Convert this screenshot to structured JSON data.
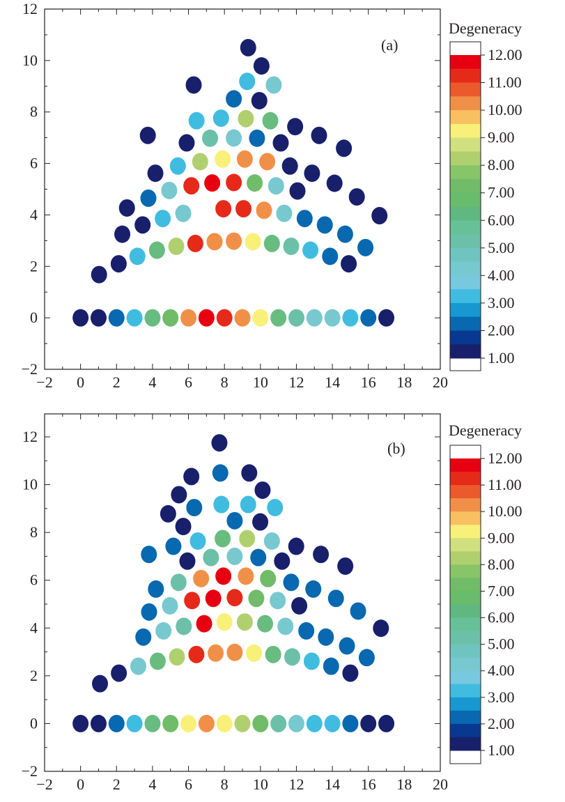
{
  "colorbar": {
    "title": "Degeneracy",
    "tick_labels": [
      "12.00",
      "11.00",
      "10.00",
      "9.00",
      "8.00",
      "7.00",
      "6.00",
      "5.00",
      "4.00",
      "3.00",
      "2.00",
      "1.00"
    ],
    "tick_values": [
      12,
      11,
      10,
      9,
      8,
      7,
      6,
      5,
      4,
      3,
      2,
      1
    ],
    "range": [
      1,
      12
    ],
    "band_colors_top_to_bottom": [
      "#e60012",
      "#e62a1a",
      "#ea5a2c",
      "#f09048",
      "#f8c060",
      "#f8f078",
      "#d0e080",
      "#b0d070",
      "#88c468",
      "#70bc68",
      "#68bc6c",
      "#60b880",
      "#68c098",
      "#6cc0a8",
      "#70c4c0",
      "#78c8d0",
      "#78c8e0",
      "#40bce0",
      "#1898d0",
      "#0868b0",
      "#083890",
      "#18206c"
    ]
  },
  "value_colors": {
    "1": "#18206c",
    "2": "#0868b0",
    "3": "#40bce0",
    "4": "#78c8d0",
    "5": "#6cc0a8",
    "6": "#68bc80",
    "7": "#70bc68",
    "8": "#b0d070",
    "9": "#f8f078",
    "10": "#f09048",
    "11": "#e62a1a",
    "12": "#e60012"
  },
  "chart_data": [
    {
      "type": "scatter",
      "panel_label": "(a)",
      "xlabel": "",
      "ylabel": "",
      "xlim": [
        -2,
        20
      ],
      "ylim": [
        -2,
        12
      ],
      "xticks": [
        -2,
        0,
        2,
        4,
        6,
        8,
        10,
        12,
        14,
        16,
        18,
        20
      ],
      "xtick_labels": [
        "−2",
        "0",
        "2",
        "4",
        "6",
        "8",
        "10",
        "12",
        "14",
        "16",
        "18",
        "20"
      ],
      "yticks": [
        -2,
        0,
        2,
        4,
        6,
        8,
        10,
        12
      ],
      "ytick_labels": [
        "−2",
        "0",
        "2",
        "4",
        "6",
        "8",
        "10",
        "12"
      ],
      "color_by": "Degeneracy",
      "points": [
        [
          9.32,
          10.5,
          1
        ],
        [
          10.06,
          9.79,
          1
        ],
        [
          9.26,
          9.19,
          3
        ],
        [
          10.74,
          9.05,
          4
        ],
        [
          6.29,
          9.05,
          1
        ],
        [
          8.52,
          8.51,
          2
        ],
        [
          9.94,
          8.44,
          1
        ],
        [
          6.45,
          7.66,
          3
        ],
        [
          7.81,
          7.76,
          3
        ],
        [
          9.19,
          7.74,
          8
        ],
        [
          10.55,
          7.66,
          6
        ],
        [
          11.93,
          7.43,
          1
        ],
        [
          13.26,
          7.09,
          1
        ],
        [
          14.64,
          6.59,
          1
        ],
        [
          3.74,
          7.09,
          1
        ],
        [
          5.9,
          6.8,
          1
        ],
        [
          7.2,
          6.98,
          5
        ],
        [
          8.52,
          6.99,
          4
        ],
        [
          9.81,
          6.98,
          2
        ],
        [
          11.13,
          6.8,
          1
        ],
        [
          5.41,
          5.9,
          3
        ],
        [
          6.65,
          6.07,
          8
        ],
        [
          7.9,
          6.17,
          9
        ],
        [
          9.13,
          6.17,
          10
        ],
        [
          10.38,
          6.07,
          10
        ],
        [
          11.64,
          5.9,
          1
        ],
        [
          12.87,
          5.62,
          1
        ],
        [
          14.12,
          5.23,
          1
        ],
        [
          15.36,
          4.7,
          1
        ],
        [
          16.62,
          3.97,
          1
        ],
        [
          4.16,
          5.62,
          1
        ],
        [
          4.93,
          4.95,
          4
        ],
        [
          6.16,
          5.13,
          11
        ],
        [
          7.32,
          5.24,
          12
        ],
        [
          8.52,
          5.26,
          11
        ],
        [
          9.68,
          5.24,
          7
        ],
        [
          10.87,
          5.13,
          4
        ],
        [
          12.06,
          4.93,
          1
        ],
        [
          3.77,
          4.65,
          2
        ],
        [
          2.58,
          4.27,
          1
        ],
        [
          4.57,
          3.86,
          3
        ],
        [
          5.71,
          4.06,
          4
        ],
        [
          7.94,
          4.24,
          11
        ],
        [
          9.06,
          4.24,
          11
        ],
        [
          10.2,
          4.18,
          10
        ],
        [
          11.32,
          4.06,
          4
        ],
        [
          12.46,
          3.86,
          2
        ],
        [
          13.58,
          3.61,
          2
        ],
        [
          14.71,
          3.25,
          2
        ],
        [
          15.84,
          2.73,
          2
        ],
        [
          3.45,
          3.61,
          1
        ],
        [
          2.32,
          3.25,
          1
        ],
        [
          1.03,
          1.68,
          1
        ],
        [
          2.12,
          2.1,
          1
        ],
        [
          3.16,
          2.39,
          3
        ],
        [
          4.25,
          2.63,
          6
        ],
        [
          5.32,
          2.78,
          8
        ],
        [
          6.38,
          2.89,
          11
        ],
        [
          7.45,
          2.96,
          10
        ],
        [
          8.52,
          2.98,
          10
        ],
        [
          9.58,
          2.96,
          9
        ],
        [
          10.64,
          2.89,
          6
        ],
        [
          11.71,
          2.78,
          5
        ],
        [
          12.78,
          2.63,
          3
        ],
        [
          13.87,
          2.39,
          2
        ],
        [
          14.91,
          2.1,
          1
        ],
        [
          0,
          0,
          1
        ],
        [
          1,
          0,
          1
        ],
        [
          2,
          0,
          2
        ],
        [
          3,
          0,
          3
        ],
        [
          4,
          0,
          6
        ],
        [
          5,
          0,
          7
        ],
        [
          6,
          0,
          10
        ],
        [
          7,
          0,
          12
        ],
        [
          8,
          0,
          11
        ],
        [
          9,
          0,
          10
        ],
        [
          10,
          0,
          9
        ],
        [
          11,
          0,
          6
        ],
        [
          12,
          0,
          5
        ],
        [
          13,
          0,
          4
        ],
        [
          14,
          0,
          4
        ],
        [
          15,
          0,
          3
        ],
        [
          16,
          0,
          2
        ],
        [
          17,
          0,
          1
        ]
      ]
    },
    {
      "type": "scatter",
      "panel_label": "(b)",
      "xlabel": "",
      "ylabel": "",
      "xlim": [
        -2,
        20
      ],
      "ylim": [
        -2,
        12.9
      ],
      "xticks": [
        -2,
        0,
        2,
        4,
        6,
        8,
        10,
        12,
        14,
        16,
        18,
        20
      ],
      "xtick_labels": [
        "−2",
        "0",
        "2",
        "4",
        "6",
        "8",
        "10",
        "12",
        "14",
        "16",
        "18",
        "20"
      ],
      "yticks": [
        -2,
        0,
        2,
        4,
        6,
        8,
        10,
        12
      ],
      "ytick_labels": [
        "−2",
        "0",
        "2",
        "4",
        "6",
        "8",
        "10",
        "12"
      ],
      "color_by": "Degeneracy",
      "points": [
        [
          7.72,
          11.75,
          1
        ],
        [
          7.77,
          10.49,
          2
        ],
        [
          9.38,
          10.49,
          1
        ],
        [
          6.16,
          10.34,
          1
        ],
        [
          10.12,
          9.77,
          1
        ],
        [
          5.47,
          9.58,
          1
        ],
        [
          6.32,
          9.04,
          2
        ],
        [
          7.83,
          9.17,
          3
        ],
        [
          9.32,
          9.17,
          3
        ],
        [
          10.81,
          9.04,
          3
        ],
        [
          4.87,
          8.78,
          1
        ],
        [
          5.71,
          8.25,
          1
        ],
        [
          8.57,
          8.49,
          2
        ],
        [
          9.99,
          8.44,
          1
        ],
        [
          6.52,
          7.64,
          3
        ],
        [
          7.9,
          7.74,
          6
        ],
        [
          9.26,
          7.74,
          8
        ],
        [
          10.64,
          7.64,
          4
        ],
        [
          11.99,
          7.42,
          1
        ],
        [
          13.36,
          7.08,
          1
        ],
        [
          14.72,
          6.59,
          1
        ],
        [
          3.8,
          7.08,
          2
        ],
        [
          5.16,
          7.42,
          2
        ],
        [
          5.94,
          6.8,
          1
        ],
        [
          7.25,
          6.95,
          5
        ],
        [
          8.57,
          7.0,
          4
        ],
        [
          9.88,
          6.95,
          2
        ],
        [
          11.2,
          6.8,
          1
        ],
        [
          5.45,
          5.91,
          5
        ],
        [
          6.7,
          6.07,
          10
        ],
        [
          7.94,
          6.17,
          12
        ],
        [
          9.19,
          6.17,
          10
        ],
        [
          10.42,
          6.07,
          7
        ],
        [
          11.71,
          5.91,
          2
        ],
        [
          12.94,
          5.63,
          2
        ],
        [
          14.2,
          5.24,
          2
        ],
        [
          15.43,
          4.71,
          2
        ],
        [
          16.7,
          3.99,
          1
        ],
        [
          4.19,
          5.63,
          2
        ],
        [
          4.97,
          4.93,
          4
        ],
        [
          6.2,
          5.15,
          11
        ],
        [
          7.38,
          5.24,
          12
        ],
        [
          8.57,
          5.27,
          11
        ],
        [
          9.77,
          5.24,
          7
        ],
        [
          10.96,
          5.15,
          4
        ],
        [
          12.16,
          4.93,
          1
        ],
        [
          3.81,
          4.67,
          2
        ],
        [
          4.61,
          3.88,
          4
        ],
        [
          5.74,
          4.07,
          5
        ],
        [
          6.87,
          4.18,
          12
        ],
        [
          8.0,
          4.25,
          9
        ],
        [
          9.13,
          4.25,
          8
        ],
        [
          10.26,
          4.18,
          6
        ],
        [
          11.39,
          4.07,
          4
        ],
        [
          12.55,
          3.88,
          2
        ],
        [
          13.64,
          3.62,
          2
        ],
        [
          14.81,
          3.25,
          2
        ],
        [
          15.91,
          2.76,
          2
        ],
        [
          3.49,
          3.62,
          2
        ],
        [
          1.08,
          1.67,
          1
        ],
        [
          2.13,
          2.11,
          1
        ],
        [
          3.21,
          2.4,
          4
        ],
        [
          4.29,
          2.61,
          6
        ],
        [
          5.36,
          2.79,
          8
        ],
        [
          6.44,
          2.89,
          11
        ],
        [
          7.51,
          2.95,
          10
        ],
        [
          8.57,
          2.98,
          10
        ],
        [
          9.64,
          2.95,
          9
        ],
        [
          10.71,
          2.89,
          6
        ],
        [
          11.77,
          2.79,
          5
        ],
        [
          12.85,
          2.61,
          3
        ],
        [
          13.93,
          2.4,
          2
        ],
        [
          15.0,
          2.11,
          1
        ],
        [
          0,
          0,
          1
        ],
        [
          1,
          0,
          1
        ],
        [
          2,
          0,
          2
        ],
        [
          3,
          0,
          3
        ],
        [
          4,
          0,
          6
        ],
        [
          5,
          0,
          7
        ],
        [
          6,
          0,
          9
        ],
        [
          7,
          0,
          10
        ],
        [
          8,
          0,
          9
        ],
        [
          9,
          0,
          8
        ],
        [
          10,
          0,
          7
        ],
        [
          11,
          0,
          5
        ],
        [
          12,
          0,
          4
        ],
        [
          13,
          0,
          3
        ],
        [
          14,
          0,
          3
        ],
        [
          15,
          0,
          2
        ],
        [
          16,
          0,
          1
        ],
        [
          17,
          0,
          1
        ]
      ]
    }
  ]
}
